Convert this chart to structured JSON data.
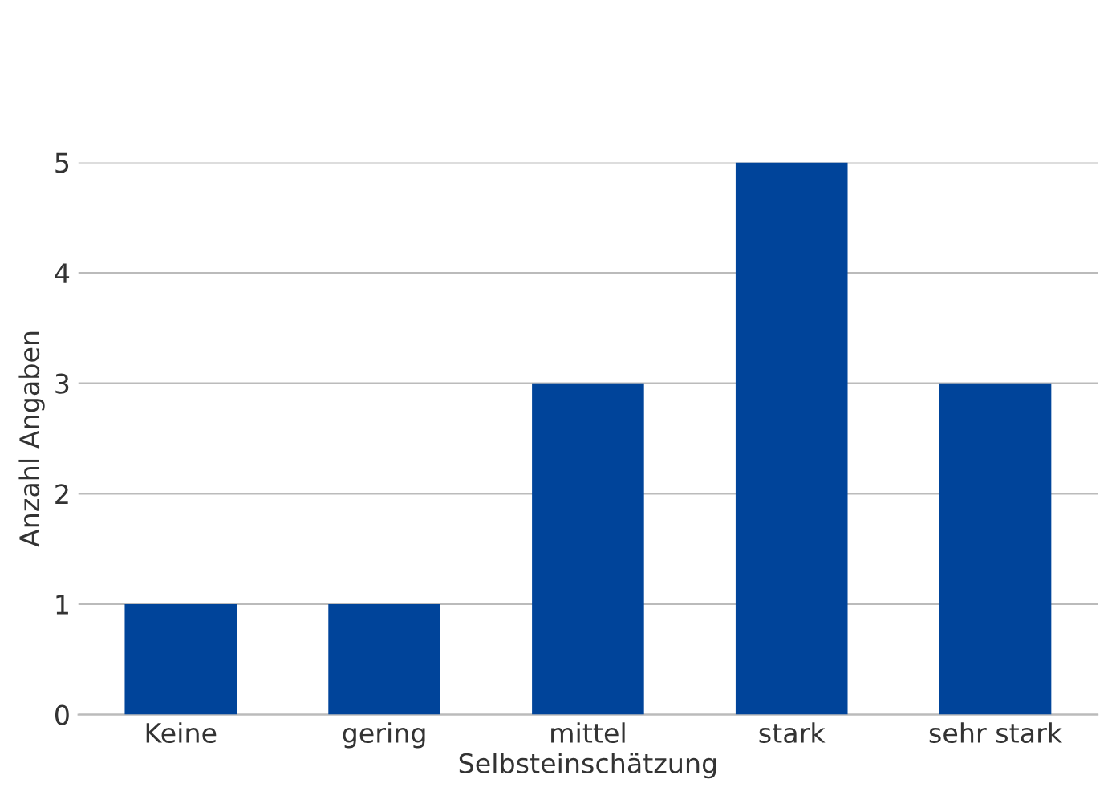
{
  "chart_data": {
    "type": "bar",
    "xlabel": "Selbsteinschätzung",
    "ylabel": "Anzahl Angaben",
    "categories": [
      "Keine",
      "gering",
      "mittel",
      "stark",
      "sehr stark"
    ],
    "values": [
      1,
      1,
      3,
      5,
      3
    ],
    "color": "#00449a",
    "ylim": [
      0,
      5
    ],
    "yticks": [
      0,
      1,
      2,
      3,
      4,
      5
    ],
    "grid": "y"
  }
}
